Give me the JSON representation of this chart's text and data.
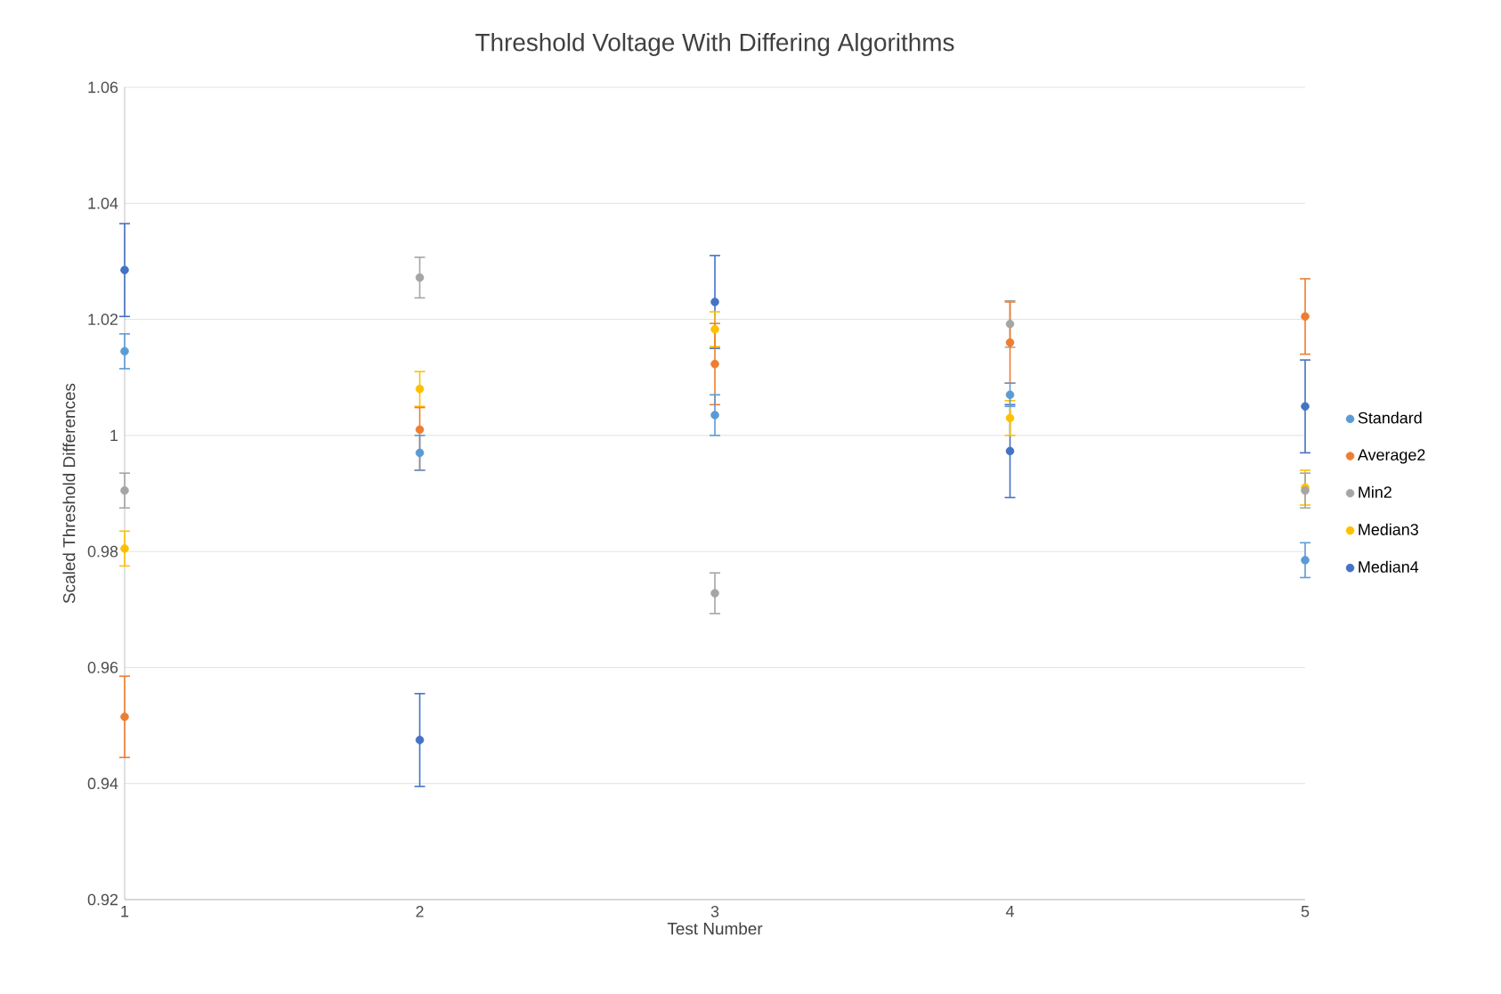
{
  "chart_data": {
    "type": "scatter",
    "title": "Threshold Voltage With Differing Algorithms",
    "xlabel": "Test Number",
    "ylabel": "Scaled Threshold Differences",
    "x": [
      1,
      2,
      3,
      4,
      5
    ],
    "xlim": [
      1,
      5
    ],
    "xticks": [
      1,
      2,
      3,
      4,
      5
    ],
    "ylim": [
      0.92,
      1.06
    ],
    "yticks": [
      0.92,
      0.94,
      0.96,
      0.98,
      1,
      1.02,
      1.04,
      1.06
    ],
    "grid": "y",
    "legend": "right",
    "marker": "circle",
    "series": [
      {
        "name": "Standard",
        "color": "#5b9bd5",
        "values": [
          1.0145,
          0.997,
          1.0035,
          1.007,
          0.9785
        ],
        "errors": [
          0.003,
          0.003,
          0.0035,
          0.002,
          0.003
        ]
      },
      {
        "name": "Average2",
        "color": "#ed7d31",
        "values": [
          0.9515,
          1.001,
          1.0123,
          1.016,
          1.0205
        ],
        "errors": [
          0.007,
          [
            0.994,
            1.0048
          ],
          0.007,
          0.007,
          0.0065
        ]
      },
      {
        "name": "Min2",
        "color": "#a5a5a5",
        "values": [
          0.9905,
          1.0272,
          0.9728,
          1.0192,
          0.9905
        ],
        "errors": [
          0.003,
          0.0035,
          0.0035,
          0.004,
          0.003
        ]
      },
      {
        "name": "Median3",
        "color": "#ffc000",
        "values": [
          0.9805,
          1.008,
          1.0183,
          1.003,
          0.991
        ],
        "errors": [
          0.003,
          0.003,
          0.003,
          0.003,
          0.003
        ]
      },
      {
        "name": "Median4",
        "color": "#4472c4",
        "values": [
          1.0285,
          0.9475,
          1.023,
          0.9973,
          1.005
        ],
        "errors": [
          0.008,
          0.008,
          0.008,
          0.008,
          0.008
        ]
      }
    ]
  }
}
